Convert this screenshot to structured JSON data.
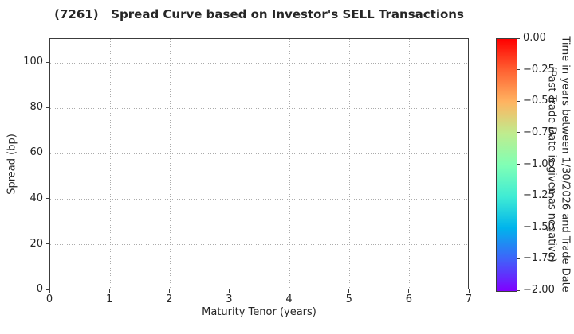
{
  "title": "(7261)   Spread Curve based on Investor's SELL Transactions",
  "chart_data": {
    "type": "scatter",
    "title": "(7261)   Spread Curve based on Investor's SELL Transactions",
    "xlabel": "Maturity Tenor (years)",
    "ylabel": "Spread (bp)",
    "xlim": [
      0,
      7
    ],
    "ylim": [
      0,
      110.5
    ],
    "xticks": [
      "0",
      "1",
      "2",
      "3",
      "4",
      "5",
      "6",
      "7"
    ],
    "xtick_values": [
      0,
      1,
      2,
      3,
      4,
      5,
      6,
      7
    ],
    "yticks": [
      "0",
      "20",
      "40",
      "60",
      "80",
      "100"
    ],
    "ytick_values": [
      0,
      20,
      40,
      60,
      80,
      100
    ],
    "grid": "dotted",
    "legend": "none",
    "series": [],
    "note": "empty plot - no data points plotted",
    "colorbar": {
      "label_line1": "Time in years between 1/30/2026 and Trade Date",
      "label_line2": "(Past Trade Date is given as negative)",
      "ticks": [
        "0.00",
        "−0.25",
        "−0.50",
        "−0.75",
        "−1.00",
        "−1.25",
        "−1.50",
        "−1.75",
        "−2.00"
      ],
      "tick_values": [
        0,
        -0.25,
        -0.5,
        -0.75,
        -1.0,
        -1.25,
        -1.5,
        -1.75,
        -2.0
      ],
      "range_top": 0.0,
      "range_bottom": -2.0,
      "colormap": "rainbow (red at 0.00 top, violet at -2.00 bottom)",
      "gradient_stops": [
        "#ff0000",
        "#ff6232",
        "#ffb461",
        "#bfec8e",
        "#80ffb5",
        "#40ecd4",
        "#00b4ec",
        "#4061fa",
        "#8000ff"
      ]
    }
  }
}
